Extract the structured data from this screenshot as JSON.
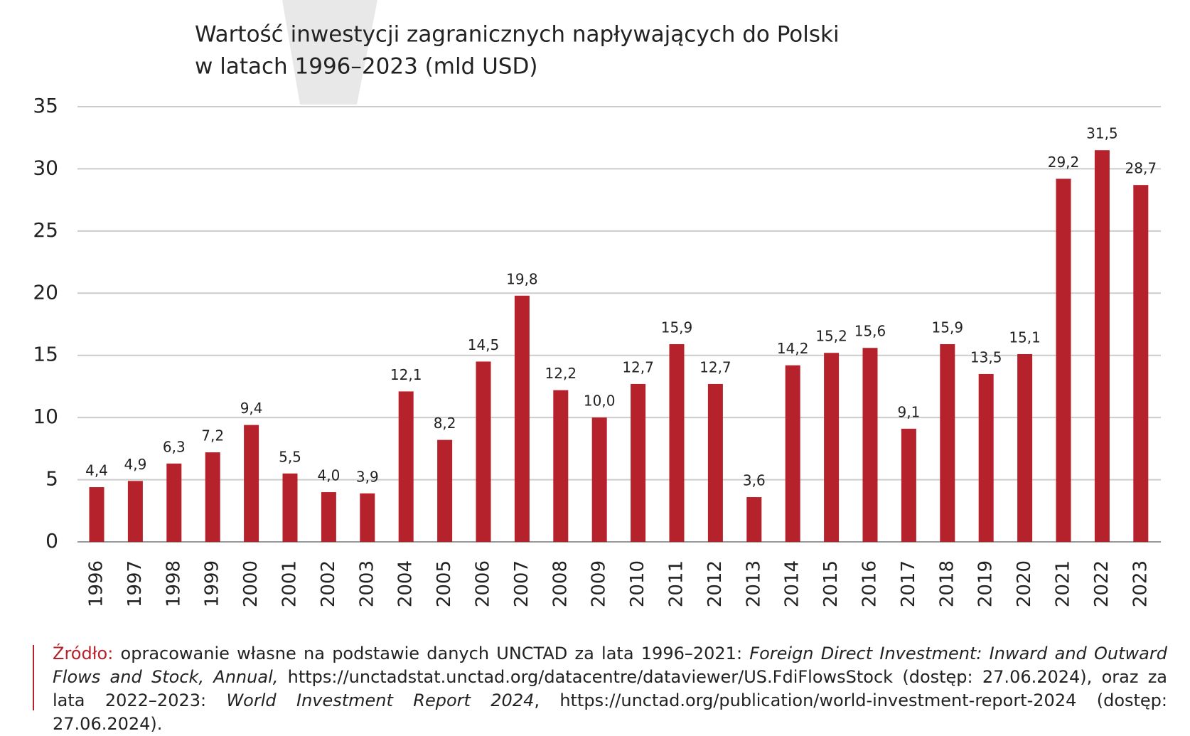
{
  "chart_data": {
    "type": "bar",
    "title": [
      "Wartość inwestycji zagranicznych napływających do Polski",
      "w latach 1996–2023 (mld USD)"
    ],
    "categories": [
      "1996",
      "1997",
      "1998",
      "1999",
      "2000",
      "2001",
      "2002",
      "2003",
      "2004",
      "2005",
      "2006",
      "2007",
      "2008",
      "2009",
      "2010",
      "2011",
      "2012",
      "2013",
      "2014",
      "2015",
      "2016",
      "2017",
      "2018",
      "2019",
      "2020",
      "2021",
      "2022",
      "2023"
    ],
    "values": [
      4.4,
      4.9,
      6.3,
      7.2,
      9.4,
      5.5,
      4.0,
      3.9,
      12.1,
      8.2,
      14.5,
      19.8,
      12.2,
      10.0,
      12.7,
      15.9,
      12.7,
      3.6,
      14.2,
      15.2,
      15.6,
      9.1,
      15.9,
      13.5,
      15.1,
      29.2,
      31.5,
      28.7
    ],
    "value_labels": [
      "4,4",
      "4,9",
      "6,3",
      "7,2",
      "9,4",
      "5,5",
      "4,0",
      "3,9",
      "12,1",
      "8,2",
      "14,5",
      "19,8",
      "12,2",
      "10,0",
      "12,7",
      "15,9",
      "12,7",
      "3,6",
      "14,2",
      "15,2",
      "15,6",
      "9,1",
      "15,9",
      "13,5",
      "15,1",
      "29,2",
      "31,5",
      "28,7"
    ],
    "color": "#b5222b",
    "ylim": [
      0,
      35
    ],
    "yticks": [
      0,
      5,
      10,
      15,
      20,
      25,
      30,
      35
    ],
    "grid": true
  },
  "source": {
    "label": "Źródło:",
    "parts": [
      " opracowanie własne na podstawie danych UNCTAD za lata 1996–2021: ",
      "Foreign Direct Investment: Inward and Outward Flows and Stock, Annual,",
      " https://unctadstat.unctad.org/datacentre/dataviewer/US.FdiFlowsStock (dostęp: 27.06.2024), oraz za lata 2022–2023: ",
      "World Investment Report 2024",
      ", https://unctad.org/publication/world-investment-report-2024 (dostęp: 27.06.2024)."
    ]
  }
}
